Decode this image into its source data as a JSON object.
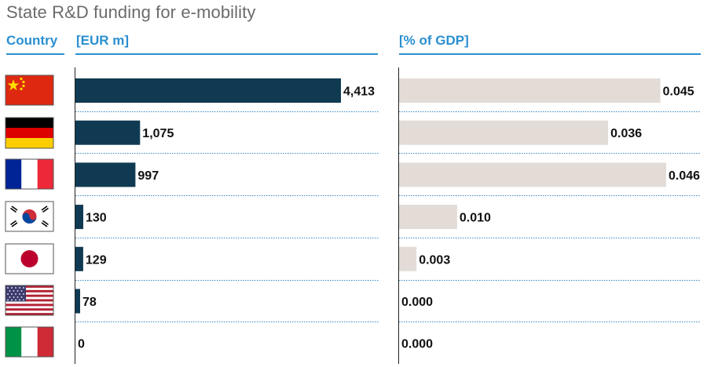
{
  "title": "State R&D funding for e-mobility",
  "headers": {
    "country": "Country",
    "eur": "[EUR m]",
    "gdp": "[% of GDP]"
  },
  "colors": {
    "accent": "#2a8fd0",
    "eur_bar": "#0f3a52",
    "gdp_bar": "#e3dcd6"
  },
  "chart_data": [
    {
      "type": "bar",
      "orientation": "horizontal",
      "title": "State R&D funding for e-mobility",
      "xlabel": "[EUR m]",
      "categories": [
        "China",
        "Germany",
        "France",
        "South Korea",
        "Japan",
        "USA",
        "Italy"
      ],
      "values": [
        4413,
        1075,
        997,
        130,
        129,
        78,
        0
      ],
      "labels": [
        "4,413",
        "1,075",
        "997",
        "130",
        "129",
        "78",
        "0"
      ],
      "xlim": [
        0,
        4413
      ]
    },
    {
      "type": "bar",
      "orientation": "horizontal",
      "xlabel": "[% of GDP]",
      "categories": [
        "China",
        "Germany",
        "France",
        "South Korea",
        "Japan",
        "USA",
        "Italy"
      ],
      "values": [
        0.045,
        0.036,
        0.046,
        0.01,
        0.003,
        0.0,
        0.0
      ],
      "labels": [
        "0.045",
        "0.036",
        "0.046",
        "0.010",
        "0.003",
        "0.000",
        "0.000"
      ],
      "xlim": [
        0,
        0.046
      ]
    }
  ],
  "flags": [
    "china-flag",
    "germany-flag",
    "france-flag",
    "south-korea-flag",
    "japan-flag",
    "usa-flag",
    "italy-flag"
  ]
}
